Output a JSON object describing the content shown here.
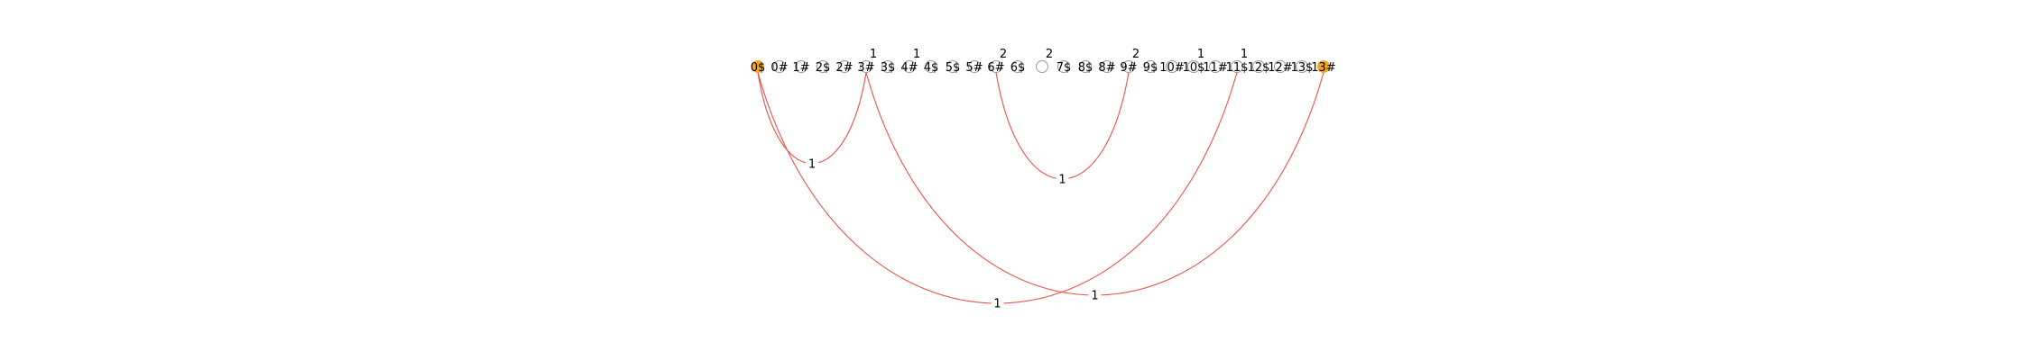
{
  "diagram": {
    "kind": "arc-diagram",
    "colors": {
      "arc": "#e8524a",
      "endpoint_fill": "#f5a623",
      "node_stroke": "#9a9a9a",
      "node_fill": "#ffffff",
      "label": "#000000"
    },
    "nodes": [
      {
        "id": "n0",
        "label": "0$",
        "endpoint": true
      },
      {
        "id": "n1",
        "label": "0#"
      },
      {
        "id": "n2",
        "label": "1#"
      },
      {
        "id": "n3",
        "label": "2$"
      },
      {
        "id": "n4",
        "label": "2#"
      },
      {
        "id": "n5",
        "label": "3#",
        "top_label": "1"
      },
      {
        "id": "n6",
        "label": "3$"
      },
      {
        "id": "n7",
        "label": "4#",
        "top_label": "1"
      },
      {
        "id": "n8",
        "label": "4$"
      },
      {
        "id": "n9",
        "label": "5$"
      },
      {
        "id": "n10",
        "label": "5#"
      },
      {
        "id": "n11",
        "label": "6#",
        "top_label": "2"
      },
      {
        "id": "n12",
        "label": "6$"
      },
      {
        "id": "n13",
        "label": "",
        "top_label": "2"
      },
      {
        "id": "n14",
        "label": "7$"
      },
      {
        "id": "n15",
        "label": "8$"
      },
      {
        "id": "n16",
        "label": "8#"
      },
      {
        "id": "n17",
        "label": "9#",
        "top_label": "2"
      },
      {
        "id": "n18",
        "label": "9$"
      },
      {
        "id": "n19",
        "label": "10#"
      },
      {
        "id": "n20",
        "label": "10$",
        "top_label": "1"
      },
      {
        "id": "n21",
        "label": "11#"
      },
      {
        "id": "n22",
        "label": "11$",
        "top_label": "1"
      },
      {
        "id": "n23",
        "label": "12$"
      },
      {
        "id": "n24",
        "label": "12#"
      },
      {
        "id": "n25",
        "label": "13$"
      },
      {
        "id": "n26",
        "label": "13#",
        "endpoint": true
      }
    ],
    "edges": [
      {
        "from": "n0",
        "to": "n5",
        "label": "1"
      },
      {
        "from": "n11",
        "to": "n17",
        "label": "1"
      },
      {
        "from": "n0",
        "to": "n22",
        "label": "1"
      },
      {
        "from": "n5",
        "to": "n26",
        "label": "1"
      }
    ]
  }
}
